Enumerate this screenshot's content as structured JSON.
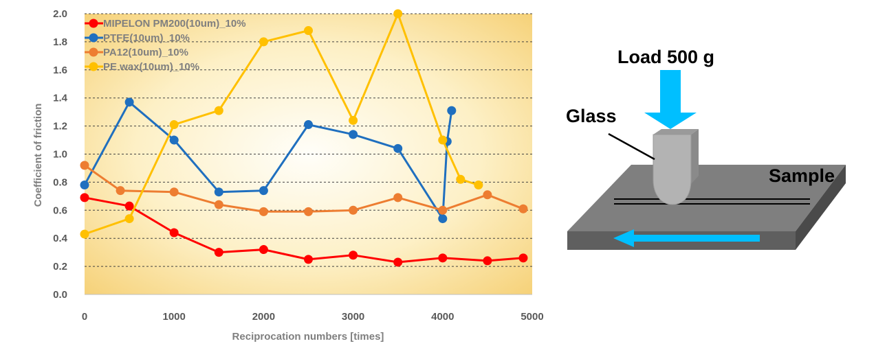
{
  "chart_data": {
    "type": "line",
    "title": "",
    "xlabel": "Reciprocation numbers [times]",
    "ylabel": "Coefficient of friction",
    "xlim": [
      0,
      5000
    ],
    "ylim": [
      0,
      2.0
    ],
    "x_ticks": [
      "0",
      "1000",
      "2000",
      "3000",
      "4000",
      "5000"
    ],
    "y_ticks": [
      "0.0",
      "0.2",
      "0.4",
      "0.6",
      "0.8",
      "1.0",
      "1.2",
      "1.4",
      "1.6",
      "1.8",
      "2.0"
    ],
    "grid": "horizontal dashed",
    "legend_position": "top-left",
    "series": [
      {
        "name": "MIPELON PM200(10um)_10%",
        "color": "#ff0000",
        "x": [
          0,
          500,
          1000,
          1500,
          2000,
          2500,
          3000,
          3500,
          4000,
          4500,
          4900
        ],
        "y": [
          0.69,
          0.63,
          0.44,
          0.3,
          0.32,
          0.25,
          0.28,
          0.23,
          0.26,
          0.24,
          0.26
        ]
      },
      {
        "name": "PTFE(10um)_10%",
        "color": "#1f6fbf",
        "x": [
          0,
          500,
          1000,
          1500,
          2000,
          2500,
          3000,
          3500,
          4000,
          4050,
          4100
        ],
        "y": [
          0.78,
          1.37,
          1.1,
          0.73,
          0.74,
          1.21,
          1.14,
          1.04,
          0.54,
          1.09,
          1.31
        ]
      },
      {
        "name": "PA12(10um)_10%",
        "color": "#ed7d31",
        "x": [
          0,
          400,
          1000,
          1500,
          2000,
          2500,
          3000,
          3500,
          4000,
          4500,
          4900
        ],
        "y": [
          0.92,
          0.74,
          0.73,
          0.64,
          0.59,
          0.59,
          0.6,
          0.69,
          0.6,
          0.71,
          0.61
        ]
      },
      {
        "name": "PE wax(10um)_10%",
        "color": "#ffc000",
        "x": [
          0,
          500,
          1000,
          1500,
          2000,
          2500,
          3000,
          3500,
          4000,
          4200,
          4400
        ],
        "y": [
          0.43,
          0.54,
          1.21,
          1.31,
          1.8,
          1.88,
          1.24,
          2.0,
          1.1,
          0.82,
          0.78
        ]
      }
    ]
  },
  "diagram": {
    "load_label": "Load 500 g",
    "glass_label": "Glass",
    "sample_label": "Sample",
    "colors": {
      "arrow": "#00bfff",
      "slab_top": "#7f7f7f",
      "slab_front": "#5f5f5f",
      "slab_side": "#4a4a4a"
    }
  }
}
